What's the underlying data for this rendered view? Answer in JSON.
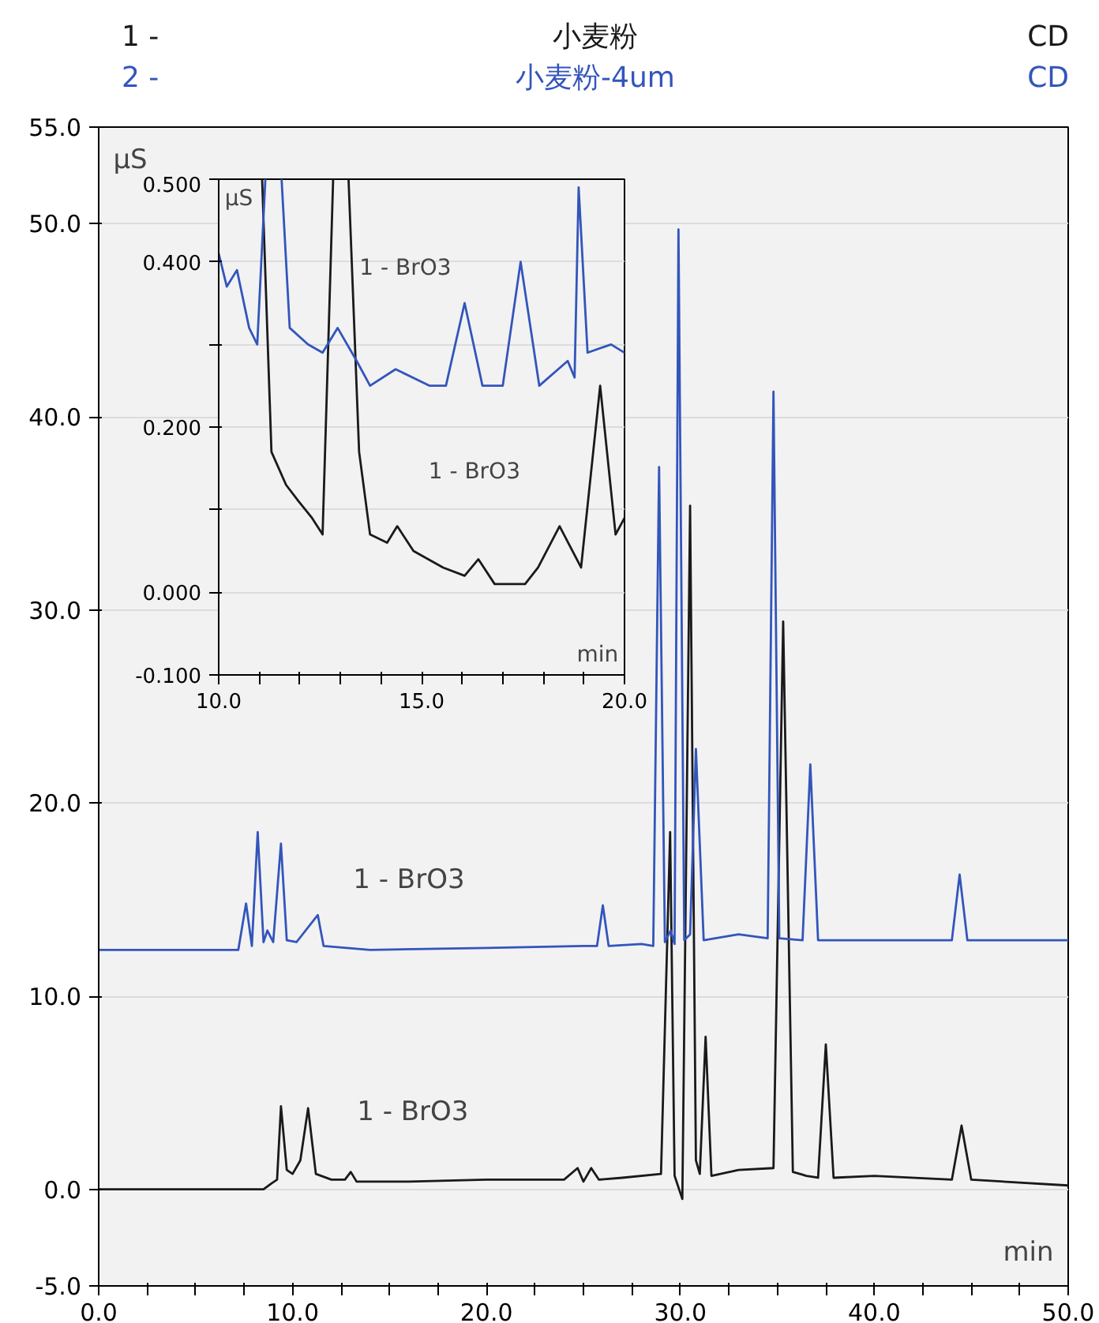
{
  "chart_data": [
    {
      "type": "line",
      "xlabel": "min",
      "ylabel": "μS",
      "legend": "top",
      "grid": "y",
      "xlim": [
        0,
        50
      ],
      "ylim": [
        -5,
        55
      ],
      "xticks": [
        {
          "value": 0,
          "label": "0.0"
        },
        {
          "value": 2.5,
          "label": null
        },
        {
          "value": 5,
          "label": null
        },
        {
          "value": 7.5,
          "label": null
        },
        {
          "value": 10,
          "label": "10.0"
        },
        {
          "value": 12.5,
          "label": null
        },
        {
          "value": 15,
          "label": null
        },
        {
          "value": 17.5,
          "label": null
        },
        {
          "value": 20,
          "label": "20.0"
        },
        {
          "value": 22.5,
          "label": null
        },
        {
          "value": 25,
          "label": null
        },
        {
          "value": 27.5,
          "label": null
        },
        {
          "value": 30,
          "label": "30.0"
        },
        {
          "value": 32.5,
          "label": null
        },
        {
          "value": 35,
          "label": null
        },
        {
          "value": 37.5,
          "label": null
        },
        {
          "value": 40,
          "label": "40.0"
        },
        {
          "value": 42.5,
          "label": null
        },
        {
          "value": 45,
          "label": null
        },
        {
          "value": 47.5,
          "label": null
        },
        {
          "value": 50,
          "label": "50.0"
        }
      ],
      "yticks": [
        {
          "value": -5,
          "label": "-5.0"
        },
        {
          "value": 0,
          "label": "0.0"
        },
        {
          "value": 10,
          "label": "10.0"
        },
        {
          "value": 20,
          "label": "20.0"
        },
        {
          "value": 30,
          "label": "30.0"
        },
        {
          "value": 40,
          "label": "40.0"
        },
        {
          "value": 50,
          "label": "50.0"
        },
        {
          "value": 55,
          "label": "55.0"
        }
      ],
      "series": [
        {
          "name": "小麦粉",
          "color": "#1a1a1a",
          "x": [
            0,
            5,
            8.5,
            8.9,
            9.2,
            9.4,
            9.7,
            10.0,
            10.4,
            10.8,
            11.2,
            12.0,
            12.7,
            13.0,
            13.3,
            16,
            20,
            24,
            24.7,
            25.0,
            25.4,
            25.8,
            27,
            29.0,
            29.47,
            29.7,
            30.1,
            30.5,
            30.8,
            31.0,
            31.3,
            31.6,
            33,
            34.8,
            35.3,
            35.8,
            36.5,
            37.1,
            37.5,
            37.9,
            40,
            44.0,
            44.5,
            45.0,
            50
          ],
          "values": [
            0.0,
            0.0,
            0.0,
            0.3,
            0.5,
            4.3,
            1.0,
            0.8,
            1.5,
            4.2,
            0.8,
            0.5,
            0.5,
            0.9,
            0.4,
            0.4,
            0.5,
            0.5,
            1.1,
            0.4,
            1.1,
            0.5,
            0.6,
            0.8,
            18.5,
            0.7,
            -0.5,
            35.4,
            1.5,
            0.8,
            7.9,
            0.7,
            1.0,
            1.1,
            29.4,
            0.9,
            0.7,
            0.6,
            7.5,
            0.6,
            0.7,
            0.5,
            3.3,
            0.5,
            0.2
          ]
        },
        {
          "name": "小麦粉-4um",
          "color": "#3355bb",
          "x": [
            0,
            7.2,
            7.6,
            7.9,
            8.2,
            8.5,
            8.7,
            9.0,
            9.4,
            9.7,
            10.2,
            11.3,
            11.6,
            14,
            20,
            25,
            25.7,
            26.0,
            26.3,
            28.0,
            28.6,
            28.9,
            29.2,
            29.5,
            29.7,
            29.9,
            30.2,
            30.5,
            30.8,
            31.2,
            33,
            34.5,
            34.8,
            35.1,
            36.3,
            36.7,
            37.1,
            40,
            44.0,
            44.4,
            44.8,
            50
          ],
          "values": [
            12.4,
            12.4,
            14.8,
            12.6,
            18.5,
            12.8,
            13.4,
            12.8,
            17.9,
            12.9,
            12.8,
            14.2,
            12.6,
            12.4,
            12.5,
            12.6,
            12.6,
            14.7,
            12.6,
            12.7,
            12.6,
            37.4,
            12.8,
            13.4,
            12.7,
            49.7,
            12.9,
            13.2,
            22.8,
            12.9,
            13.2,
            13.0,
            41.3,
            13.0,
            12.9,
            22.0,
            12.9,
            12.9,
            12.9,
            16.3,
            12.9,
            12.9
          ]
        }
      ],
      "annotations": [
        "1 -",
        "2 -",
        "CD",
        "CD",
        "1 - BrO3",
        "1 - BrO3"
      ]
    },
    {
      "type": "line",
      "xlabel": "min",
      "ylabel": "μS",
      "grid": "y",
      "xlim": [
        10,
        20
      ],
      "ylim": [
        -0.1,
        0.5
      ],
      "xticks": [
        {
          "value": 10,
          "label": "10.0"
        },
        {
          "value": 11,
          "label": null
        },
        {
          "value": 12,
          "label": null
        },
        {
          "value": 13,
          "label": null
        },
        {
          "value": 14,
          "label": null
        },
        {
          "value": 15,
          "label": "15.0"
        },
        {
          "value": 16,
          "label": null
        },
        {
          "value": 17,
          "label": null
        },
        {
          "value": 18,
          "label": null
        },
        {
          "value": 19,
          "label": null
        },
        {
          "value": 20,
          "label": "20.0"
        }
      ],
      "yticks": [
        {
          "value": -0.1,
          "label": "-0.100"
        },
        {
          "value": 0,
          "label": "0.000"
        },
        {
          "value": 0.1,
          "label": null
        },
        {
          "value": 0.2,
          "label": "0.200"
        },
        {
          "value": 0.3,
          "label": null
        },
        {
          "value": 0.4,
          "label": "0.400"
        },
        {
          "value": 0.5,
          "label": "0.500"
        }
      ],
      "series": [
        {
          "color": "#1a1a1a",
          "x": [
            11.07,
            11.3,
            11.66,
            11.97,
            12.3,
            12.56,
            12.7,
            12.82,
            13.0,
            13.2,
            13.46,
            13.73,
            14.15,
            14.4,
            14.8,
            15.53,
            16.06,
            16.4,
            16.8,
            17.55,
            17.87,
            18.4,
            18.93,
            19.4,
            19.78,
            20.0
          ],
          "values": [
            0.5,
            0.17,
            0.13,
            0.11,
            0.09,
            0.07,
            0.3,
            0.5,
            null,
            0.5,
            0.17,
            0.07,
            0.06,
            0.08,
            0.05,
            0.03,
            0.02,
            0.04,
            0.01,
            0.01,
            0.03,
            0.08,
            0.03,
            0.25,
            0.07,
            0.09
          ]
        },
        {
          "color": "#3355bb",
          "x": [
            10.0,
            10.2,
            10.45,
            10.75,
            10.95,
            11.15,
            11.35,
            11.55,
            11.75,
            12.2,
            12.56,
            12.93,
            13.4,
            13.73,
            14.36,
            15.2,
            15.6,
            16.06,
            16.5,
            17.0,
            17.44,
            17.9,
            18.6,
            18.77,
            18.87,
            19.09,
            19.67,
            20.0
          ],
          "values": [
            0.41,
            0.37,
            0.39,
            0.32,
            0.3,
            0.5,
            null,
            0.5,
            0.32,
            0.3,
            0.29,
            0.32,
            0.28,
            0.25,
            0.27,
            0.25,
            0.25,
            0.35,
            0.25,
            0.25,
            0.4,
            0.25,
            0.28,
            0.26,
            0.49,
            0.29,
            0.3,
            0.29
          ]
        }
      ],
      "annotations": [
        "1 - BrO3",
        "1 - BrO3"
      ]
    }
  ]
}
